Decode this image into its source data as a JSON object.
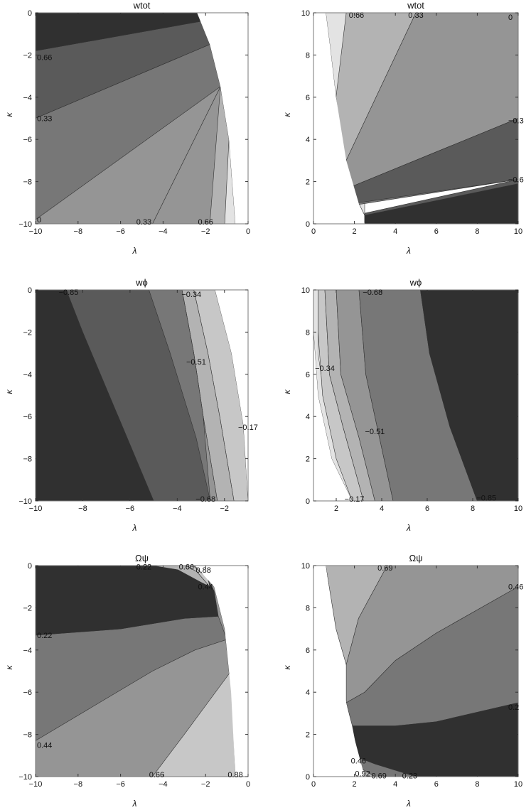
{
  "chart_data": [
    {
      "type": "contour",
      "title": "wtot",
      "xlabel": "λ",
      "ylabel": "κ",
      "xlim": [
        -10,
        0
      ],
      "ylim": [
        -10,
        0
      ],
      "xticks": [
        "-10",
        "-8",
        "-6",
        "-4",
        "-2",
        "0"
      ],
      "yticks": [
        "-10",
        "-8",
        "-6",
        "-4",
        "-2",
        "0"
      ],
      "contour_labels": [
        {
          "text": "0.66",
          "x": -9.8,
          "y": -2.1
        },
        {
          "text": "0.33",
          "x": -9.8,
          "y": -5.0
        },
        {
          "text": "0",
          "x": -9.8,
          "y": -9.8
        },
        {
          "text": "0.33",
          "x": -4.9,
          "y": -9.9
        },
        {
          "text": "0.66",
          "x": -2.0,
          "y": -9.9
        }
      ]
    },
    {
      "type": "contour",
      "title": "wtot",
      "xlabel": "λ",
      "ylabel": "κ",
      "xlim": [
        0,
        10
      ],
      "ylim": [
        0,
        10
      ],
      "xticks": [
        "0",
        "2",
        "4",
        "6",
        "8",
        "10"
      ],
      "yticks": [
        "0",
        "2",
        "4",
        "6",
        "8",
        "10"
      ],
      "contour_labels": [
        {
          "text": "0.66",
          "x": 2.1,
          "y": 9.9
        },
        {
          "text": "0.33",
          "x": 5.0,
          "y": 9.9
        },
        {
          "text": "0",
          "x": 9.9,
          "y": 9.8
        },
        {
          "text": "-0.3",
          "x": 9.9,
          "y": 4.9
        },
        {
          "text": "-0.6",
          "x": 9.9,
          "y": 2.1
        }
      ]
    },
    {
      "type": "contour",
      "title": "wϕ",
      "xlabel": "λ",
      "ylabel": "κ",
      "xlim": [
        -10,
        -1
      ],
      "ylim": [
        -10,
        0
      ],
      "xticks": [
        "-10",
        "-8",
        "-6",
        "-4",
        "-2"
      ],
      "yticks": [
        "-10",
        "-8",
        "-6",
        "-4",
        "-2",
        "0"
      ],
      "contour_labels": [
        {
          "text": "-0.85",
          "x": -8.6,
          "y": -0.1
        },
        {
          "text": "-0.34",
          "x": -3.4,
          "y": -0.2
        },
        {
          "text": "-0.51",
          "x": -3.2,
          "y": -3.4
        },
        {
          "text": "-0.17",
          "x": -1.1,
          "y": -6.5
        },
        {
          "text": "-0.68",
          "x": -2.8,
          "y": -9.9
        }
      ]
    },
    {
      "type": "contour",
      "title": "wϕ",
      "xlabel": "λ",
      "ylabel": "κ",
      "xlim": [
        1,
        10
      ],
      "ylim": [
        0,
        10
      ],
      "xticks": [
        "2",
        "4",
        "6",
        "8",
        "10"
      ],
      "yticks": [
        "0",
        "2",
        "4",
        "6",
        "8",
        "10"
      ],
      "contour_labels": [
        {
          "text": "-0.68",
          "x": 3.6,
          "y": 9.9
        },
        {
          "text": "-0.34",
          "x": 1.5,
          "y": 6.3
        },
        {
          "text": "-0.51",
          "x": 3.7,
          "y": 3.3
        },
        {
          "text": "-0.17",
          "x": 2.8,
          "y": 0.1
        },
        {
          "text": "-0.85",
          "x": 8.6,
          "y": 0.15
        }
      ]
    },
    {
      "type": "contour",
      "title": "Ωψ",
      "xlabel": "λ",
      "ylabel": "κ",
      "xlim": [
        -10,
        0
      ],
      "ylim": [
        -10,
        0
      ],
      "xticks": [
        "-10",
        "-8",
        "-6",
        "-4",
        "-2",
        "0"
      ],
      "yticks": [
        "-10",
        "-8",
        "-6",
        "-4",
        "-2",
        "0"
      ],
      "contour_labels": [
        {
          "text": "0.22",
          "x": -4.9,
          "y": -0.05
        },
        {
          "text": "0.66",
          "x": -2.9,
          "y": -0.05
        },
        {
          "text": "0.88",
          "x": -2.1,
          "y": -0.2
        },
        {
          "text": "0.44",
          "x": -2.0,
          "y": -1.0
        },
        {
          "text": "0.22",
          "x": -10.0,
          "y": -3.3
        },
        {
          "text": "0.44",
          "x": -9.8,
          "y": -8.5
        },
        {
          "text": "0.66",
          "x": -4.3,
          "y": -9.9
        },
        {
          "text": "0.88",
          "x": -0.6,
          "y": -9.9
        }
      ]
    },
    {
      "type": "contour",
      "title": "Ωψ",
      "xlabel": "λ",
      "ylabel": "κ",
      "xlim": [
        0,
        10
      ],
      "ylim": [
        0,
        10
      ],
      "xticks": [
        "0",
        "2",
        "4",
        "6",
        "8",
        "10"
      ],
      "yticks": [
        "0",
        "2",
        "4",
        "6",
        "8",
        "10"
      ],
      "contour_labels": [
        {
          "text": "0.69",
          "x": 3.5,
          "y": 9.9
        },
        {
          "text": "0.46",
          "x": 9.9,
          "y": 9.0
        },
        {
          "text": "0.2",
          "x": 9.9,
          "y": 3.3
        },
        {
          "text": "0.46",
          "x": 2.2,
          "y": 0.75
        },
        {
          "text": "0.92",
          "x": 2.4,
          "y": 0.15
        },
        {
          "text": "0.69",
          "x": 3.2,
          "y": 0.05
        },
        {
          "text": "0.23",
          "x": 4.7,
          "y": 0.05
        }
      ]
    }
  ]
}
